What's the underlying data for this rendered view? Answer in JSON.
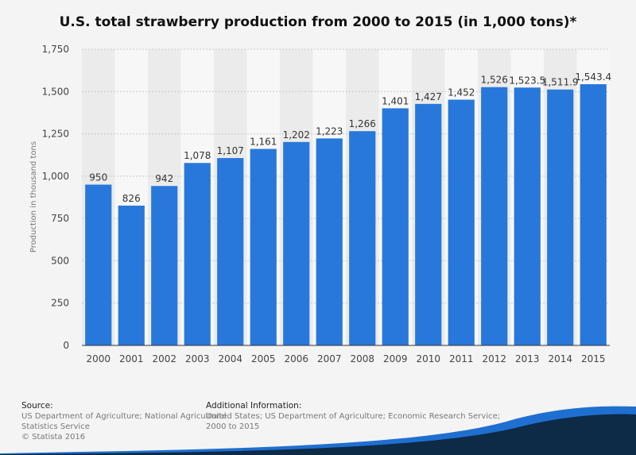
{
  "chart_data": {
    "type": "bar",
    "title": "U.S. total strawberry production from 2000 to 2015 (in 1,000 tons)*",
    "xlabel": "",
    "ylabel": "Production in thousand tons",
    "categories": [
      "2000",
      "2001",
      "2002",
      "2003",
      "2004",
      "2005",
      "2006",
      "2007",
      "2008",
      "2009",
      "2010",
      "2011",
      "2012",
      "2013",
      "2014",
      "2015"
    ],
    "values": [
      950,
      826,
      942,
      1078,
      1107,
      1161,
      1202,
      1223,
      1266,
      1401,
      1427,
      1452,
      1526,
      1523.5,
      1511.9,
      1543.4
    ],
    "value_labels": [
      "950",
      "826",
      "942",
      "1,078",
      "1,107",
      "1,161",
      "1,202",
      "1,223",
      "1,266",
      "1,401",
      "1,427",
      "1,452",
      "1,526",
      "1,523.5",
      "1,511.9",
      "1,543.4"
    ],
    "ylim": [
      0,
      1750
    ],
    "yticks": [
      0,
      250,
      500,
      750,
      1000,
      1250,
      1500,
      1750
    ],
    "ytick_labels": [
      "0",
      "250",
      "500",
      "750",
      "1,000",
      "1,250",
      "1,500",
      "1,750"
    ],
    "grid": true,
    "bar_color": "#2878dc"
  },
  "footer": {
    "source_heading": "Source:",
    "source_lines": [
      "US Department of Agriculture; National Agricultural",
      "Statistics Service",
      "© Statista 2016"
    ],
    "info_heading": "Additional Information:",
    "info_lines": [
      "United States; US Department of Agriculture; Economic Research Service;",
      "2000 to 2015"
    ]
  },
  "colors": {
    "wave_dark": "#0d2a47",
    "wave_blue": "#1f6fd0"
  }
}
